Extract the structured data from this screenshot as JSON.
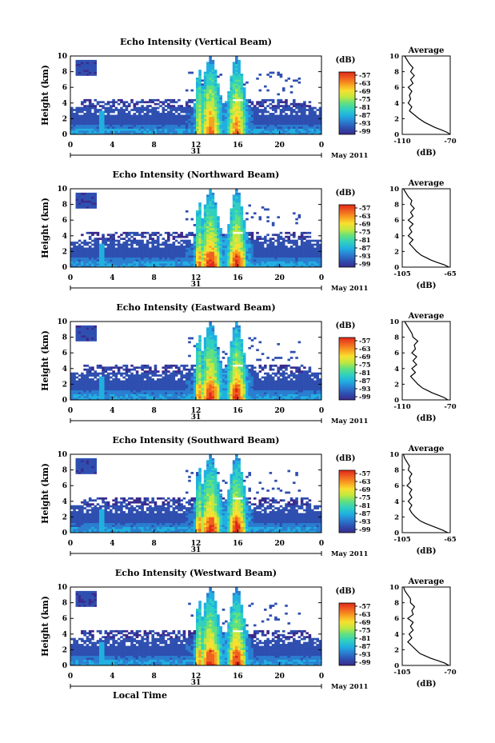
{
  "figure": {
    "date_label": "May 2011",
    "day_label": "31",
    "xlabel": "Local Time",
    "unit_label": "(dB)",
    "average_title": "Average"
  },
  "chart_data": [
    {
      "type": "heatmap",
      "title": "Echo Intensity (Vertical Beam)",
      "xlabel": "",
      "ylabel": "Height (km)",
      "xlim": [
        0,
        24
      ],
      "ylim": [
        0,
        10
      ],
      "x_ticks": [
        "0",
        "4",
        "8",
        "12",
        "16",
        "20",
        "0"
      ],
      "y_ticks": [
        "0",
        "2",
        "4",
        "6",
        "8",
        "10"
      ],
      "colorbar": {
        "label": "(dB)",
        "ticks": [
          "-57",
          "-63",
          "-69",
          "-75",
          "-81",
          "-87",
          "-93",
          "-99"
        ]
      },
      "average": {
        "title": "Average",
        "xlabel": "(dB)",
        "xlim": [
          -110,
          -70
        ],
        "x_ticks": [
          "-110",
          "-70"
        ],
        "y_ticks": [
          "0",
          "2",
          "4",
          "6",
          "8",
          "10"
        ],
        "profile": [
          [
            0,
            -70
          ],
          [
            0.3,
            -73
          ],
          [
            0.6,
            -78
          ],
          [
            0.9,
            -83
          ],
          [
            1.2,
            -87
          ],
          [
            1.5,
            -91
          ],
          [
            2,
            -96
          ],
          [
            2.5,
            -100
          ],
          [
            3,
            -104
          ],
          [
            3.5,
            -102
          ],
          [
            4,
            -105
          ],
          [
            4.5,
            -103
          ],
          [
            5,
            -104
          ],
          [
            5.5,
            -102
          ],
          [
            6,
            -105
          ],
          [
            6.5,
            -101
          ],
          [
            7,
            -103
          ],
          [
            7.5,
            -100
          ],
          [
            8,
            -103
          ],
          [
            8.5,
            -101
          ],
          [
            9,
            -104
          ],
          [
            9.5,
            -106
          ],
          [
            10,
            -108
          ]
        ]
      }
    },
    {
      "type": "heatmap",
      "title": "Echo Intensity (Northward Beam)",
      "xlabel": "",
      "ylabel": "Height (km)",
      "xlim": [
        0,
        24
      ],
      "ylim": [
        0,
        10
      ],
      "x_ticks": [
        "0",
        "4",
        "8",
        "12",
        "16",
        "20",
        "0"
      ],
      "y_ticks": [
        "0",
        "2",
        "4",
        "6",
        "8",
        "10"
      ],
      "colorbar": {
        "label": "(dB)",
        "ticks": [
          "-57",
          "-63",
          "-69",
          "-75",
          "-81",
          "-87",
          "-93",
          "-99"
        ]
      },
      "average": {
        "title": "Average",
        "xlabel": "(dB)",
        "xlim": [
          -105,
          -65
        ],
        "x_ticks": [
          "-105",
          "-65"
        ],
        "y_ticks": [
          "0",
          "2",
          "4",
          "6",
          "8",
          "10"
        ],
        "profile": [
          [
            0,
            -66
          ],
          [
            0.3,
            -70
          ],
          [
            0.6,
            -76
          ],
          [
            0.9,
            -81
          ],
          [
            1.2,
            -85
          ],
          [
            1.5,
            -89
          ],
          [
            2,
            -93
          ],
          [
            2.5,
            -96
          ],
          [
            3,
            -99
          ],
          [
            3.5,
            -96
          ],
          [
            4,
            -100
          ],
          [
            4.5,
            -97
          ],
          [
            5,
            -99
          ],
          [
            5.5,
            -96
          ],
          [
            6,
            -100
          ],
          [
            6.5,
            -96
          ],
          [
            7,
            -98
          ],
          [
            7.5,
            -95
          ],
          [
            8,
            -98
          ],
          [
            8.5,
            -97
          ],
          [
            9,
            -100
          ],
          [
            9.5,
            -102
          ],
          [
            10,
            -104
          ]
        ]
      }
    },
    {
      "type": "heatmap",
      "title": "Echo Intensity (Eastward Beam)",
      "xlabel": "",
      "ylabel": "Height (km)",
      "xlim": [
        0,
        24
      ],
      "ylim": [
        0,
        10
      ],
      "x_ticks": [
        "0",
        "4",
        "8",
        "12",
        "16",
        "20",
        "0"
      ],
      "y_ticks": [
        "0",
        "2",
        "4",
        "6",
        "8",
        "10"
      ],
      "colorbar": {
        "label": "(dB)",
        "ticks": [
          "-57",
          "-63",
          "-69",
          "-75",
          "-81",
          "-87",
          "-93",
          "-99"
        ]
      },
      "average": {
        "title": "Average",
        "xlabel": "(dB)",
        "xlim": [
          -110,
          -70
        ],
        "x_ticks": [
          "-110",
          "-70"
        ],
        "y_ticks": [
          "0",
          "2",
          "4",
          "6",
          "8",
          "10"
        ],
        "profile": [
          [
            0,
            -72
          ],
          [
            0.3,
            -75
          ],
          [
            0.6,
            -80
          ],
          [
            0.9,
            -85
          ],
          [
            1.2,
            -89
          ],
          [
            1.5,
            -93
          ],
          [
            2,
            -97
          ],
          [
            2.5,
            -100
          ],
          [
            3,
            -103
          ],
          [
            3.5,
            -99
          ],
          [
            4,
            -102
          ],
          [
            4.5,
            -98
          ],
          [
            5,
            -101
          ],
          [
            5.5,
            -98
          ],
          [
            6,
            -102
          ],
          [
            6.5,
            -99
          ],
          [
            7,
            -100
          ],
          [
            7.5,
            -97
          ],
          [
            8,
            -101
          ],
          [
            8.5,
            -102
          ],
          [
            9,
            -104
          ],
          [
            9.5,
            -106
          ],
          [
            10,
            -108
          ]
        ]
      }
    },
    {
      "type": "heatmap",
      "title": "Echo Intensity (Southward Beam)",
      "xlabel": "",
      "ylabel": "Height (km)",
      "xlim": [
        0,
        24
      ],
      "ylim": [
        0,
        10
      ],
      "x_ticks": [
        "0",
        "4",
        "8",
        "12",
        "16",
        "20",
        "0"
      ],
      "y_ticks": [
        "0",
        "2",
        "4",
        "6",
        "8",
        "10"
      ],
      "colorbar": {
        "label": "(dB)",
        "ticks": [
          "-57",
          "-63",
          "-69",
          "-75",
          "-81",
          "-87",
          "-93",
          "-99"
        ]
      },
      "average": {
        "title": "Average",
        "xlabel": "(dB)",
        "xlim": [
          -105,
          -65
        ],
        "x_ticks": [
          "-105",
          "-65"
        ],
        "y_ticks": [
          "0",
          "2",
          "4",
          "6",
          "8",
          "10"
        ],
        "profile": [
          [
            0,
            -67
          ],
          [
            0.3,
            -71
          ],
          [
            0.6,
            -76
          ],
          [
            0.9,
            -81
          ],
          [
            1.2,
            -86
          ],
          [
            1.5,
            -90
          ],
          [
            2,
            -94
          ],
          [
            2.5,
            -97
          ],
          [
            3,
            -99
          ],
          [
            3.5,
            -97
          ],
          [
            4,
            -100
          ],
          [
            4.5,
            -97
          ],
          [
            5,
            -99
          ],
          [
            5.5,
            -97
          ],
          [
            6,
            -101
          ],
          [
            6.5,
            -98
          ],
          [
            7,
            -99
          ],
          [
            7.5,
            -97
          ],
          [
            8,
            -100
          ],
          [
            8.5,
            -99
          ],
          [
            9,
            -101
          ],
          [
            9.5,
            -103
          ],
          [
            10,
            -104
          ]
        ]
      }
    },
    {
      "type": "heatmap",
      "title": "Echo Intensity (Westward Beam)",
      "xlabel": "Local Time",
      "ylabel": "Height (km)",
      "xlim": [
        0,
        24
      ],
      "ylim": [
        0,
        10
      ],
      "x_ticks": [
        "0",
        "4",
        "8",
        "12",
        "16",
        "20",
        "0"
      ],
      "y_ticks": [
        "0",
        "2",
        "4",
        "6",
        "8",
        "10"
      ],
      "colorbar": {
        "label": "(dB)",
        "ticks": [
          "-57",
          "-63",
          "-69",
          "-75",
          "-81",
          "-87",
          "-93",
          "-99"
        ]
      },
      "average": {
        "title": "Average",
        "xlabel": "(dB)",
        "xlim": [
          -105,
          -70
        ],
        "x_ticks": [
          "-105",
          "-70"
        ],
        "y_ticks": [
          "0",
          "2",
          "4",
          "6",
          "8",
          "10"
        ],
        "profile": [
          [
            0,
            -71
          ],
          [
            0.3,
            -74
          ],
          [
            0.6,
            -79
          ],
          [
            0.9,
            -84
          ],
          [
            1.2,
            -88
          ],
          [
            1.5,
            -92
          ],
          [
            2,
            -95
          ],
          [
            2.5,
            -98
          ],
          [
            3,
            -101
          ],
          [
            3.5,
            -98
          ],
          [
            4,
            -100
          ],
          [
            4.5,
            -97
          ],
          [
            5,
            -99
          ],
          [
            5.5,
            -97
          ],
          [
            6,
            -101
          ],
          [
            6.5,
            -97
          ],
          [
            7,
            -98
          ],
          [
            7.5,
            -96
          ],
          [
            8,
            -99
          ],
          [
            8.5,
            -99
          ],
          [
            9,
            -101
          ],
          [
            9.5,
            -103
          ],
          [
            10,
            -104
          ]
        ]
      }
    }
  ],
  "colormap": [
    "#3a2a8c",
    "#2e4fb0",
    "#2a7dd0",
    "#20b0e0",
    "#30d0c0",
    "#60e080",
    "#c0e840",
    "#f8e030",
    "#f8a020",
    "#f06020",
    "#e02818"
  ]
}
